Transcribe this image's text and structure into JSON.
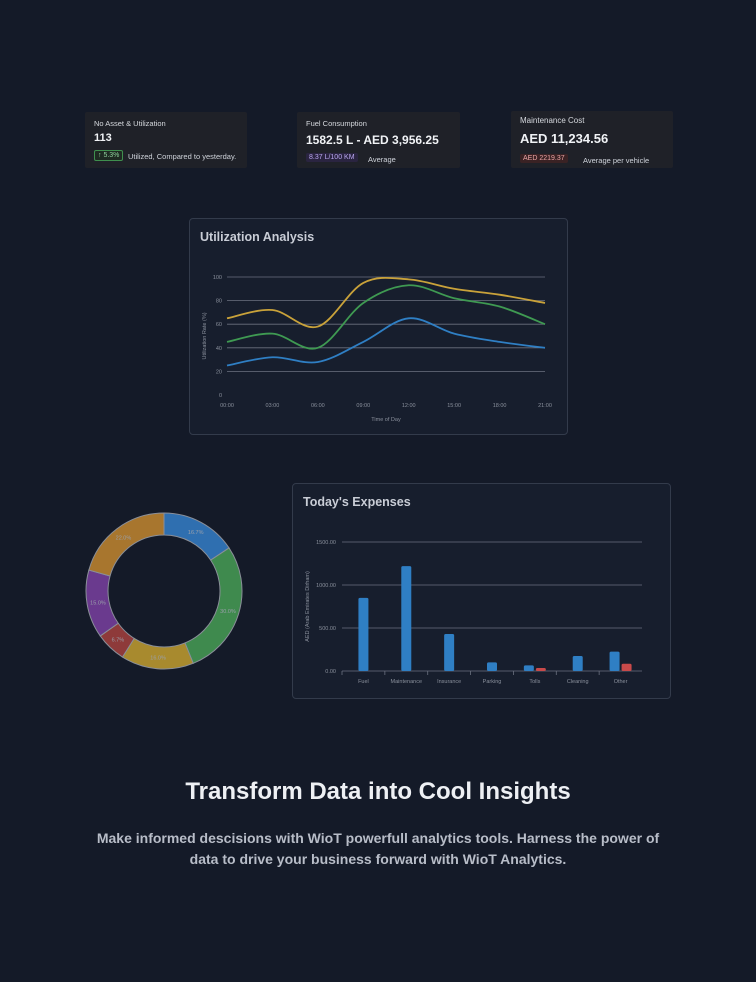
{
  "kpis": [
    {
      "title": "No Asset & Utilization",
      "value": "113",
      "badge": "↑ 5.3%",
      "sub": "Utilized, Compared to yesterday."
    },
    {
      "title": "Fuel Consumption",
      "value": "1582.5 L - AED 3,956.25",
      "badge": "8.37 L/100 KM",
      "sub": "Average"
    },
    {
      "title": "Maintenance Cost",
      "value": "AED 11,234.56",
      "badge": "AED 2219.37",
      "sub": "Average per vehicle"
    }
  ],
  "colors": {
    "series": [
      "#c9a23a",
      "#3f9a52",
      "#2f7fc4"
    ],
    "bar_primary": "#2f7fc4",
    "bar_secondary": "#c94a4a",
    "donut": [
      "#2f6fb0",
      "#3f8a4e",
      "#a88a2e",
      "#8e3a3a",
      "#6a3a8e",
      "#a8762e"
    ]
  },
  "chart_data": [
    {
      "type": "line",
      "title": "Utilization Analysis",
      "xlabel": "Time of Day",
      "ylabel": "Utilization Rate (%)",
      "x": [
        "00:00",
        "03:00",
        "06:00",
        "09:00",
        "12:00",
        "15:00",
        "18:00",
        "21:00"
      ],
      "ylim": [
        0,
        100
      ],
      "yticks": [
        0,
        20,
        40,
        60,
        80,
        100
      ],
      "grid": true,
      "series": [
        {
          "values": [
            65,
            72,
            58,
            95,
            98,
            90,
            85,
            78
          ]
        },
        {
          "values": [
            45,
            52,
            40,
            78,
            93,
            82,
            75,
            60
          ]
        },
        {
          "values": [
            25,
            32,
            28,
            45,
            65,
            52,
            45,
            40
          ]
        }
      ]
    },
    {
      "type": "pie",
      "labels": [
        "16.7%",
        "30.0%",
        "16.0%",
        "6.7%",
        "15.0%",
        "22.0%"
      ],
      "values": [
        16.7,
        30.0,
        16.0,
        6.7,
        15.0,
        22.0
      ]
    },
    {
      "type": "bar",
      "title": "Today's Expenses",
      "xlabel": "",
      "ylabel": "AED (Arab Emirates Dirham)",
      "categories": [
        "Fuel",
        "Maintenance",
        "Insurance",
        "Parking",
        "Tolls",
        "Cleaning",
        "Other"
      ],
      "ylim": [
        0,
        1500
      ],
      "yticks": [
        "0.00",
        "500.00",
        "1000.00",
        "1500.00"
      ],
      "series": [
        {
          "values": [
            850,
            1220,
            430,
            100,
            65,
            175,
            225
          ]
        },
        {
          "values": [
            0,
            0,
            0,
            0,
            35,
            0,
            85
          ]
        }
      ]
    }
  ],
  "hero": {
    "title": "Transform Data into Cool Insights",
    "text": "Make informed descisions with WioT powerfull analytics tools. Harness the power of data to drive your business forward with WioT Analytics."
  }
}
